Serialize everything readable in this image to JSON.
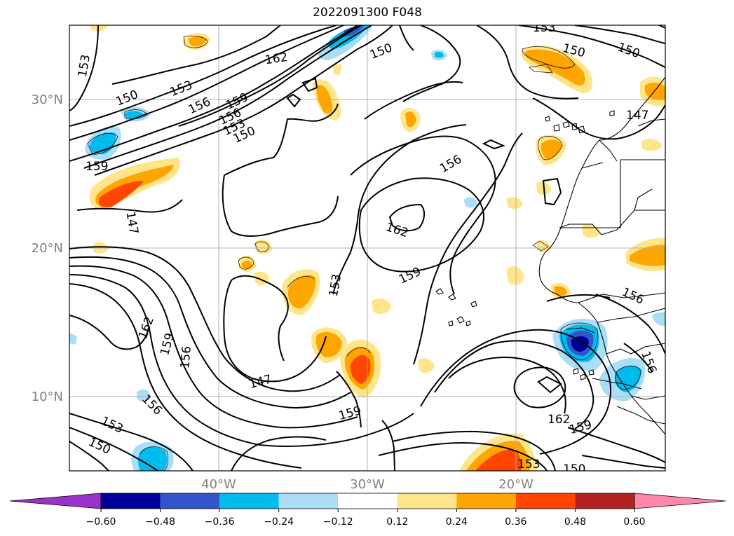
{
  "title": "2022091300 F048",
  "map": {
    "lat_ticks": [
      "30°N",
      "20°N",
      "10°N"
    ],
    "lon_ticks": [
      "40°W",
      "30°W",
      "20°W"
    ],
    "contour_labels": [
      "153",
      "153",
      "150",
      "162",
      "150",
      "150",
      "150",
      "153",
      "156",
      "159",
      "156",
      "153",
      "150",
      "159",
      "147",
      "156",
      "147",
      "162",
      "159",
      "162",
      "159",
      "156",
      "153",
      "147",
      "159",
      "156",
      "162",
      "159",
      "153",
      "150",
      "156",
      "153",
      "150",
      "156"
    ],
    "grid": true,
    "contour_color": "#000000",
    "coastline_color": "#000000"
  },
  "colorbar": {
    "orientation": "horizontal",
    "extend": "both",
    "tick_labels": [
      "−0.60",
      "−0.48",
      "−0.36",
      "−0.24",
      "−0.12",
      "0.12",
      "0.24",
      "0.36",
      "0.48",
      "0.60"
    ],
    "colors": [
      "#9933cc",
      "#000099",
      "#3355cc",
      "#00bbee",
      "#aaddf7",
      "#ffffff",
      "#ffe58a",
      "#ffa500",
      "#ff4500",
      "#b22222",
      "#ff88aa"
    ]
  }
}
